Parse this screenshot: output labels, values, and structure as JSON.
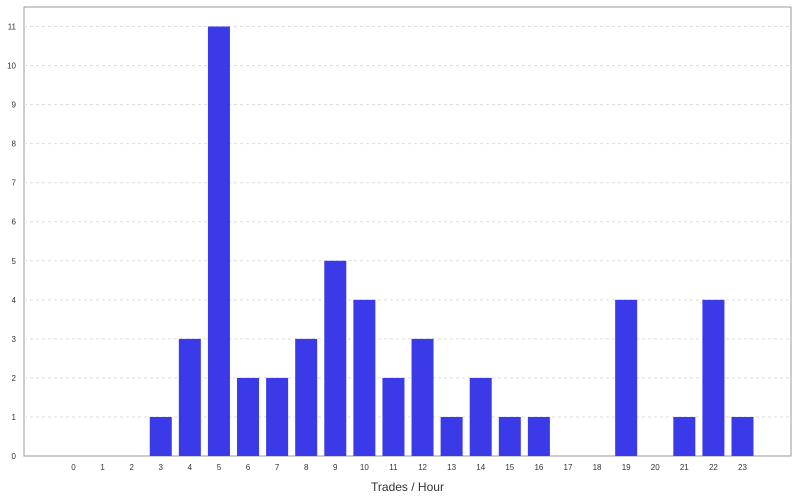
{
  "colors": {
    "bar": "#3a3ae8",
    "grid": "#dddddd",
    "plot_border": "#999999",
    "text": "#333333"
  },
  "chart_data": {
    "type": "bar",
    "title": "",
    "xlabel": "Trades / Hour",
    "ylabel": "",
    "categories": [
      "0",
      "1",
      "2",
      "3",
      "4",
      "5",
      "6",
      "7",
      "8",
      "9",
      "10",
      "11",
      "12",
      "13",
      "14",
      "15",
      "16",
      "17",
      "18",
      "19",
      "20",
      "21",
      "22",
      "23"
    ],
    "values": [
      0,
      0,
      0,
      1,
      3,
      11,
      2,
      2,
      3,
      5,
      4,
      2,
      3,
      1,
      2,
      1,
      1,
      0,
      0,
      4,
      0,
      1,
      4,
      1
    ],
    "ylim": [
      0,
      11.5
    ],
    "yticks": [
      0,
      1,
      2,
      3,
      4,
      5,
      6,
      7,
      8,
      9,
      10,
      11
    ],
    "grid": true,
    "legend": "none"
  }
}
